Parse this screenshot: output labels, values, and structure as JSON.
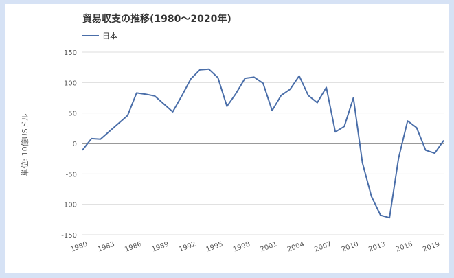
{
  "chart_data": {
    "type": "line",
    "title": "貿易収支の推移(1980～2020年)",
    "ylabel": "単位: 10億USドル",
    "xlabel": "",
    "ylim": [
      -150,
      150
    ],
    "yticks": [
      150,
      100,
      50,
      0,
      -50,
      -100,
      -150
    ],
    "xlim": [
      1980,
      2020
    ],
    "xticks": [
      1980,
      1983,
      1986,
      1989,
      1992,
      1995,
      1998,
      2001,
      2004,
      2007,
      2010,
      2013,
      2016,
      2019
    ],
    "legend_position": "top-left",
    "grid": true,
    "series": [
      {
        "name": "日本",
        "color": "#4a6ea9",
        "x": [
          1980,
          1981,
          1982,
          1983,
          1984,
          1985,
          1986,
          1987,
          1988,
          1989,
          1990,
          1991,
          1992,
          1993,
          1994,
          1995,
          1996,
          1997,
          1998,
          1999,
          2000,
          2001,
          2002,
          2003,
          2004,
          2005,
          2006,
          2007,
          2008,
          2009,
          2010,
          2011,
          2012,
          2013,
          2014,
          2015,
          2016,
          2017,
          2018,
          2019,
          2020
        ],
        "values": [
          -11,
          8,
          7,
          20,
          33,
          46,
          83,
          81,
          78,
          65,
          52,
          78,
          106,
          121,
          122,
          108,
          61,
          82,
          107,
          109,
          99,
          54,
          79,
          89,
          111,
          79,
          67,
          92,
          19,
          28,
          75,
          -32,
          -87,
          -118,
          -122,
          -24,
          37,
          26,
          -11,
          -16,
          5
        ]
      }
    ]
  }
}
